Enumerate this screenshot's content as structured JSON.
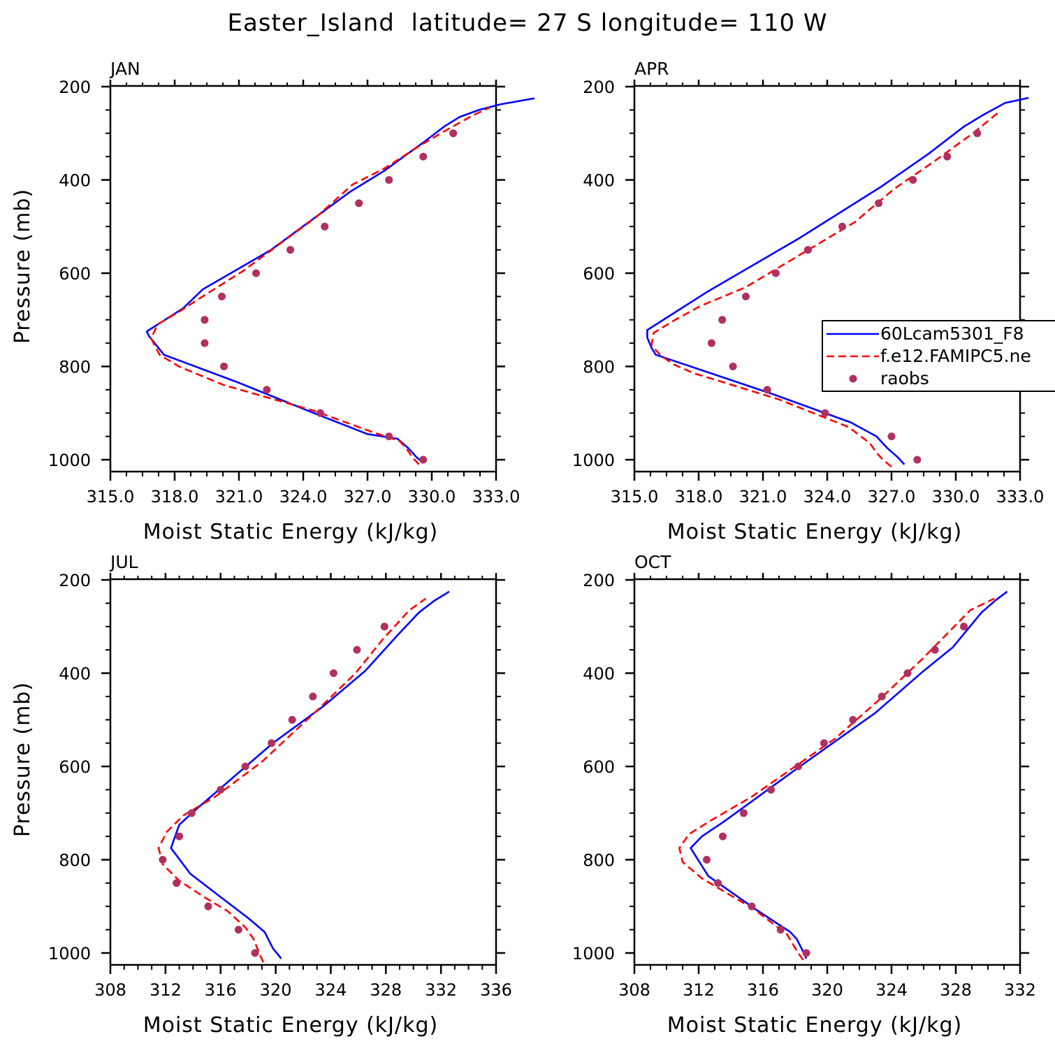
{
  "figure": {
    "title": "Easter_Island  latitude= 27 S longitude= 110 W"
  },
  "colors": {
    "model1": "#0000ff",
    "model2": "#ff0000",
    "obs": "#b03060",
    "axes": "#000000"
  },
  "legend": {
    "entries": [
      {
        "label": "60Lcam5301_F8",
        "style": "solid-line",
        "color": "#0000ff"
      },
      {
        "label": "f.e12.FAMIPC5.ne",
        "style": "dashed-line",
        "color": "#ff0000"
      },
      {
        "label": "raobs",
        "style": "dot",
        "color": "#b03060"
      }
    ]
  },
  "chart_data": [
    {
      "type": "line",
      "title": "JAN",
      "xlabel": "Moist Static Energy (kJ/kg)",
      "ylabel": "Pressure (mb)",
      "xlim": [
        315,
        333
      ],
      "ylim": [
        1000,
        200
      ],
      "x_ticks": [
        "315.0",
        "318.0",
        "321.0",
        "324.0",
        "327.0",
        "330.0",
        "333.0"
      ],
      "y_ticks": [
        "200",
        "400",
        "600",
        "800",
        "1000"
      ],
      "series": [
        {
          "name": "60Lcam5301_F8",
          "style": "solid",
          "color": "#0000ff",
          "points": [
            [
              329.6,
              1007
            ],
            [
              329.3,
              995
            ],
            [
              328.9,
              975
            ],
            [
              328.4,
              955
            ],
            [
              327.0,
              945
            ],
            [
              324.5,
              900
            ],
            [
              321.0,
              835
            ],
            [
              317.5,
              775
            ],
            [
              316.8,
              735
            ],
            [
              316.7,
              725
            ],
            [
              318.4,
              675
            ],
            [
              319.3,
              635
            ],
            [
              322.5,
              550
            ],
            [
              326.2,
              425
            ],
            [
              327.8,
              380
            ],
            [
              328.7,
              350
            ],
            [
              329.6,
              320
            ],
            [
              330.6,
              285
            ],
            [
              331.3,
              265
            ],
            [
              332.2,
              250
            ],
            [
              333.2,
              238
            ],
            [
              334.8,
              225
            ]
          ]
        },
        {
          "name": "f.e12.FAMIPC5.ne",
          "style": "dashed",
          "color": "#ff0000",
          "points": [
            [
              329.4,
              1010
            ],
            [
              329.1,
              995
            ],
            [
              328.8,
              975
            ],
            [
              328.5,
              960
            ],
            [
              327.2,
              940
            ],
            [
              324.5,
              895
            ],
            [
              320.3,
              840
            ],
            [
              318.2,
              800
            ],
            [
              317.3,
              775
            ],
            [
              316.9,
              740
            ],
            [
              317.2,
              710
            ],
            [
              318.3,
              680
            ],
            [
              319.3,
              650
            ],
            [
              321.2,
              595
            ],
            [
              324.6,
              480
            ],
            [
              326.3,
              410
            ],
            [
              327.8,
              375
            ],
            [
              329.5,
              325
            ],
            [
              330.8,
              290
            ],
            [
              331.9,
              262
            ],
            [
              332.7,
              245
            ]
          ]
        }
      ],
      "observations": {
        "name": "raobs",
        "color": "#b03060",
        "points": [
          [
            329.6,
            1000
          ],
          [
            328.0,
            950
          ],
          [
            324.8,
            900
          ],
          [
            322.3,
            850
          ],
          [
            320.3,
            800
          ],
          [
            319.4,
            750
          ],
          [
            319.4,
            700
          ],
          [
            320.2,
            650
          ],
          [
            321.8,
            600
          ],
          [
            323.4,
            550
          ],
          [
            325.0,
            500
          ],
          [
            326.6,
            450
          ],
          [
            328.0,
            400
          ],
          [
            329.6,
            350
          ],
          [
            331.0,
            300
          ]
        ]
      }
    },
    {
      "type": "line",
      "title": "APR",
      "xlabel": "Moist Static Energy (kJ/kg)",
      "ylabel": "",
      "xlim": [
        315,
        333
      ],
      "ylim": [
        1000,
        200
      ],
      "x_ticks": [
        "315.0",
        "318.0",
        "321.0",
        "324.0",
        "327.0",
        "330.0",
        "333.0"
      ],
      "y_ticks": [
        "200",
        "400",
        "600",
        "800",
        "1000"
      ],
      "series": [
        {
          "name": "60Lcam5301_F8",
          "style": "solid",
          "color": "#0000ff",
          "points": [
            [
              327.6,
              1010
            ],
            [
              327.3,
              995
            ],
            [
              326.8,
              975
            ],
            [
              326.3,
              950
            ],
            [
              325.1,
              920
            ],
            [
              321.5,
              860
            ],
            [
              316.0,
              775
            ],
            [
              315.8,
              760
            ],
            [
              315.6,
              738
            ],
            [
              315.6,
              722
            ],
            [
              317.2,
              675
            ],
            [
              318.4,
              640
            ],
            [
              322.7,
              525
            ],
            [
              326.5,
              415
            ],
            [
              328.7,
              345
            ],
            [
              330.4,
              285
            ],
            [
              331.3,
              260
            ],
            [
              332.3,
              235
            ],
            [
              333.4,
              224
            ]
          ]
        },
        {
          "name": "f.e12.FAMIPC5.ne",
          "style": "dashed",
          "color": "#ff0000",
          "points": [
            [
              327.0,
              1015
            ],
            [
              326.6,
              1000
            ],
            [
              326.3,
              985
            ],
            [
              326.0,
              965
            ],
            [
              325.0,
              930
            ],
            [
              321.7,
              870
            ],
            [
              317.8,
              815
            ],
            [
              316.8,
              795
            ],
            [
              316.2,
              775
            ],
            [
              315.8,
              755
            ],
            [
              315.9,
              728
            ],
            [
              316.9,
              700
            ],
            [
              318.1,
              670
            ],
            [
              320.2,
              630
            ],
            [
              325.3,
              490
            ],
            [
              327.1,
              420
            ],
            [
              329.0,
              360
            ],
            [
              330.8,
              300
            ],
            [
              332.0,
              255
            ]
          ]
        }
      ],
      "observations": {
        "name": "raobs",
        "color": "#b03060",
        "points": [
          [
            328.2,
            1000
          ],
          [
            327.0,
            950
          ],
          [
            323.9,
            900
          ],
          [
            321.2,
            850
          ],
          [
            319.6,
            800
          ],
          [
            318.6,
            750
          ],
          [
            319.1,
            700
          ],
          [
            320.2,
            650
          ],
          [
            321.6,
            600
          ],
          [
            323.1,
            550
          ],
          [
            324.7,
            500
          ],
          [
            326.4,
            450
          ],
          [
            328.0,
            400
          ],
          [
            329.6,
            350
          ],
          [
            331.0,
            300
          ]
        ]
      }
    },
    {
      "type": "line",
      "title": "JUL",
      "xlabel": "Moist Static Energy (kJ/kg)",
      "ylabel": "Pressure (mb)",
      "xlim": [
        308,
        336
      ],
      "ylim": [
        1000,
        200
      ],
      "x_ticks": [
        "308",
        "312",
        "316",
        "320",
        "324",
        "328",
        "332",
        "336"
      ],
      "y_ticks": [
        "200",
        "400",
        "600",
        "800",
        "1000"
      ],
      "series": [
        {
          "name": "60Lcam5301_F8",
          "style": "solid",
          "color": "#0000ff",
          "points": [
            [
              320.4,
              1012
            ],
            [
              319.8,
              990
            ],
            [
              319.2,
              955
            ],
            [
              318.0,
              925
            ],
            [
              316.0,
              880
            ],
            [
              313.8,
              830
            ],
            [
              312.4,
              775
            ],
            [
              313.0,
              725
            ],
            [
              314.3,
              690
            ],
            [
              319.8,
              550
            ],
            [
              323.5,
              470
            ],
            [
              326.5,
              395
            ],
            [
              328.8,
              320
            ],
            [
              330.4,
              270
            ],
            [
              331.5,
              245
            ],
            [
              332.6,
              225
            ]
          ]
        },
        {
          "name": "f.e12.FAMIPC5.ne",
          "style": "dashed",
          "color": "#ff0000",
          "points": [
            [
              319.1,
              1020
            ],
            [
              318.8,
              1000
            ],
            [
              318.4,
              970
            ],
            [
              317.8,
              945
            ],
            [
              316.5,
              910
            ],
            [
              314.8,
              880
            ],
            [
              313.0,
              845
            ],
            [
              311.8,
              810
            ],
            [
              311.5,
              775
            ],
            [
              312.1,
              740
            ],
            [
              313.3,
              705
            ],
            [
              315.6,
              665
            ],
            [
              319.0,
              590
            ],
            [
              323.0,
              480
            ],
            [
              325.8,
              400
            ],
            [
              327.7,
              330
            ],
            [
              329.7,
              265
            ],
            [
              330.9,
              240
            ]
          ]
        }
      ],
      "observations": {
        "name": "raobs",
        "color": "#b03060",
        "points": [
          [
            318.5,
            1000
          ],
          [
            317.3,
            950
          ],
          [
            315.1,
            900
          ],
          [
            312.8,
            850
          ],
          [
            311.8,
            800
          ],
          [
            313.0,
            750
          ],
          [
            313.9,
            700
          ],
          [
            316.0,
            650
          ],
          [
            317.8,
            600
          ],
          [
            319.7,
            550
          ],
          [
            321.2,
            500
          ],
          [
            322.7,
            450
          ],
          [
            324.2,
            400
          ],
          [
            325.9,
            350
          ],
          [
            327.9,
            300
          ]
        ]
      }
    },
    {
      "type": "line",
      "title": "OCT",
      "xlabel": "Moist Static Energy (kJ/kg)",
      "ylabel": "",
      "xlim": [
        308,
        332
      ],
      "ylim": [
        1000,
        200
      ],
      "x_ticks": [
        "308",
        "312",
        "316",
        "320",
        "324",
        "328",
        "332"
      ],
      "y_ticks": [
        "200",
        "400",
        "600",
        "800",
        "1000"
      ],
      "series": [
        {
          "name": "60Lcam5301_F8",
          "style": "solid",
          "color": "#0000ff",
          "points": [
            [
              318.7,
              1012
            ],
            [
              318.4,
              990
            ],
            [
              318.1,
              970
            ],
            [
              317.7,
              955
            ],
            [
              315.7,
              910
            ],
            [
              312.6,
              835
            ],
            [
              311.5,
              775
            ],
            [
              312.2,
              750
            ],
            [
              313.5,
              720
            ],
            [
              318.3,
              600
            ],
            [
              323.0,
              485
            ],
            [
              326.0,
              395
            ],
            [
              327.8,
              345
            ],
            [
              329.6,
              270
            ],
            [
              330.5,
              243
            ],
            [
              331.2,
              225
            ]
          ]
        },
        {
          "name": "f.e12.FAMIPC5.ne",
          "style": "dashed",
          "color": "#ff0000",
          "points": [
            [
              318.5,
              1015
            ],
            [
              318.1,
              995
            ],
            [
              317.5,
              960
            ],
            [
              315.4,
              905
            ],
            [
              312.2,
              840
            ],
            [
              311.0,
              805
            ],
            [
              310.8,
              775
            ],
            [
              311.4,
              745
            ],
            [
              312.8,
              715
            ],
            [
              315.3,
              665
            ],
            [
              320.5,
              540
            ],
            [
              323.3,
              455
            ],
            [
              325.9,
              370
            ],
            [
              327.9,
              300
            ],
            [
              328.9,
              265
            ],
            [
              330.4,
              240
            ]
          ]
        }
      ],
      "observations": {
        "name": "raobs",
        "color": "#b03060",
        "points": [
          [
            318.7,
            1000
          ],
          [
            317.1,
            950
          ],
          [
            315.3,
            900
          ],
          [
            313.2,
            850
          ],
          [
            312.5,
            800
          ],
          [
            313.5,
            750
          ],
          [
            314.8,
            700
          ],
          [
            316.5,
            650
          ],
          [
            318.2,
            600
          ],
          [
            319.8,
            550
          ],
          [
            321.6,
            500
          ],
          [
            323.4,
            450
          ],
          [
            325.0,
            400
          ],
          [
            326.7,
            350
          ],
          [
            328.5,
            300
          ]
        ]
      }
    }
  ]
}
